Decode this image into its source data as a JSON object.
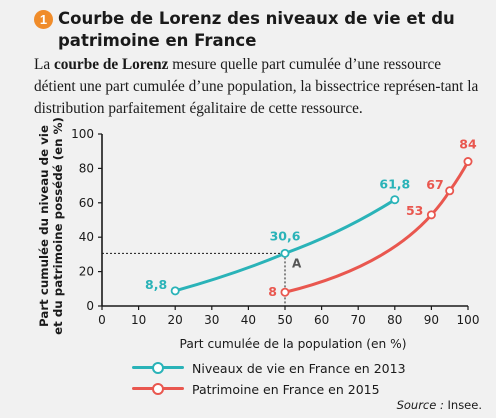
{
  "header": {
    "badge": "1",
    "title": "Courbe de Lorenz des niveaux de vie et du patrimoine en France"
  },
  "intro": {
    "prefix": "La ",
    "term": "courbe de Lorenz",
    "text": " mesure quelle part cumulée d’une ressource détient une part cumulée d’une population, la bissectrice représen-tant la distribution parfaitement égalitaire de cette ressource."
  },
  "chart_data": {
    "type": "line",
    "xlabel": "Part cumulée de la population (en %)",
    "ylabel_line1": "Part cumulée du niveau de vie",
    "ylabel_line2": "et du patrimoine possédé (en %)",
    "xlim": [
      0,
      100
    ],
    "ylim": [
      0,
      100
    ],
    "xticks": [
      0,
      10,
      20,
      30,
      40,
      50,
      60,
      70,
      80,
      90,
      100
    ],
    "yticks": [
      0,
      20,
      40,
      60,
      80,
      100
    ],
    "grid": false,
    "legend_position": "bottom",
    "series": [
      {
        "name": "Niveaux de vie en France en 2013",
        "color": "#2ab3b8",
        "x": [
          20,
          50,
          80
        ],
        "y": [
          8.8,
          30.6,
          61.8
        ],
        "labels": [
          "8,8",
          "30,6",
          "61,8"
        ]
      },
      {
        "name": "Patrimoine en France en 2015",
        "color": "#e9574f",
        "x": [
          50,
          90,
          95,
          100
        ],
        "y": [
          8,
          53,
          67,
          84
        ],
        "labels": [
          "8",
          "53",
          "67",
          "84"
        ]
      }
    ],
    "annotations": [
      {
        "text": "A",
        "x": 50,
        "y": 30.6
      }
    ]
  },
  "source": {
    "label": "Source :",
    "value": " Insee."
  }
}
